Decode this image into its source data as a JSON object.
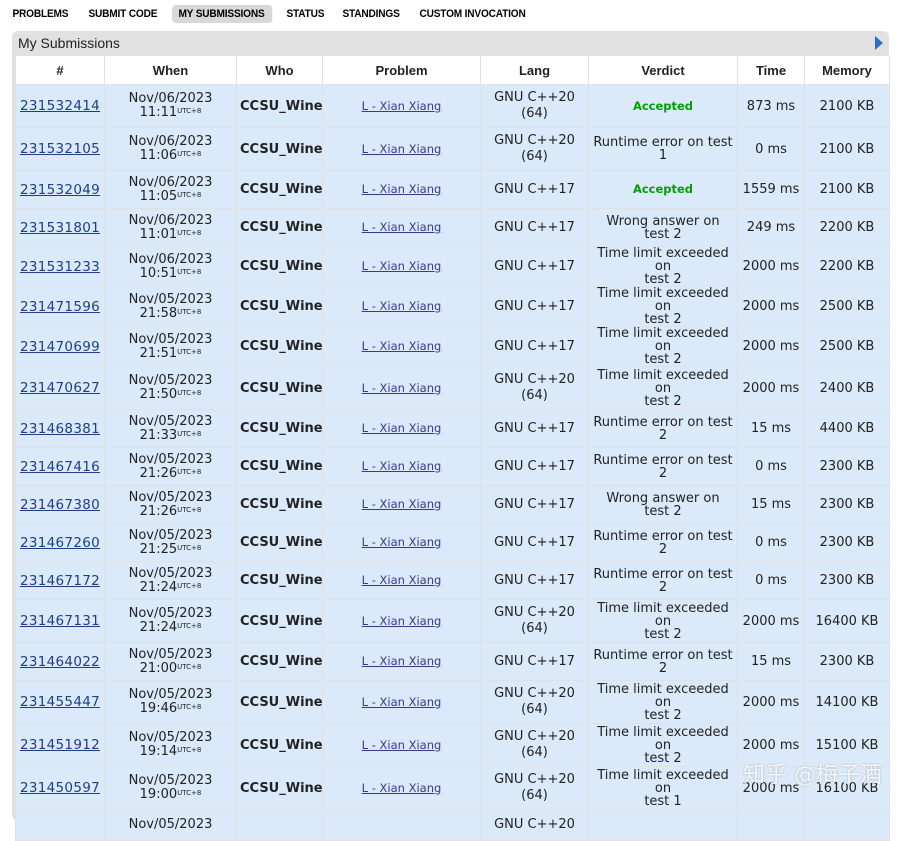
{
  "nav": [
    "PROBLEMS",
    "SUBMIT CODE",
    "MY SUBMISSIONS",
    "STATUS",
    "STANDINGS",
    "CUSTOM INVOCATION"
  ],
  "nav_active": "MY SUBMISSIONS",
  "panel_title": "My Submissions",
  "headers": [
    "#",
    "When",
    "Who",
    "Problem",
    "Lang",
    "Verdict",
    "Time",
    "Memory"
  ],
  "colors": {
    "accepted": "#00a000",
    "row_bg": "#dbeafa",
    "who": "#0000a0"
  },
  "rows": [
    {
      "id": "231532414",
      "date": "Nov/06/2023",
      "time": "11:11",
      "tz": "UTC+8",
      "who": "CCSU_Wine",
      "problem": "L - Xian Xiang",
      "lang": [
        "GNU C++20",
        "(64)"
      ],
      "verdict": [
        "Accepted"
      ],
      "accepted": true,
      "time_ms": "873 ms",
      "memory": "2100 KB"
    },
    {
      "id": "231532105",
      "date": "Nov/06/2023",
      "time": "11:06",
      "tz": "UTC+8",
      "who": "CCSU_Wine",
      "problem": "L - Xian Xiang",
      "lang": [
        "GNU C++20",
        "(64)"
      ],
      "verdict": [
        "Runtime error on test 1"
      ],
      "accepted": false,
      "time_ms": "0 ms",
      "memory": "2100 KB"
    },
    {
      "id": "231532049",
      "date": "Nov/06/2023",
      "time": "11:05",
      "tz": "UTC+8",
      "who": "CCSU_Wine",
      "problem": "L - Xian Xiang",
      "lang": [
        "GNU C++17"
      ],
      "verdict": [
        "Accepted"
      ],
      "accepted": true,
      "time_ms": "1559 ms",
      "memory": "2100 KB"
    },
    {
      "id": "231531801",
      "date": "Nov/06/2023",
      "time": "11:01",
      "tz": "UTC+8",
      "who": "CCSU_Wine",
      "problem": "L - Xian Xiang",
      "lang": [
        "GNU C++17"
      ],
      "verdict": [
        "Wrong answer on test 2"
      ],
      "accepted": false,
      "time_ms": "249 ms",
      "memory": "2200 KB"
    },
    {
      "id": "231531233",
      "date": "Nov/06/2023",
      "time": "10:51",
      "tz": "UTC+8",
      "who": "CCSU_Wine",
      "problem": "L - Xian Xiang",
      "lang": [
        "GNU C++17"
      ],
      "verdict": [
        "Time limit exceeded on",
        "test 2"
      ],
      "accepted": false,
      "time_ms": "2000 ms",
      "memory": "2200 KB"
    },
    {
      "id": "231471596",
      "date": "Nov/05/2023",
      "time": "21:58",
      "tz": "UTC+8",
      "who": "CCSU_Wine",
      "problem": "L - Xian Xiang",
      "lang": [
        "GNU C++17"
      ],
      "verdict": [
        "Time limit exceeded on",
        "test 2"
      ],
      "accepted": false,
      "time_ms": "2000 ms",
      "memory": "2500 KB"
    },
    {
      "id": "231470699",
      "date": "Nov/05/2023",
      "time": "21:51",
      "tz": "UTC+8",
      "who": "CCSU_Wine",
      "problem": "L - Xian Xiang",
      "lang": [
        "GNU C++17"
      ],
      "verdict": [
        "Time limit exceeded on",
        "test 2"
      ],
      "accepted": false,
      "time_ms": "2000 ms",
      "memory": "2500 KB"
    },
    {
      "id": "231470627",
      "date": "Nov/05/2023",
      "time": "21:50",
      "tz": "UTC+8",
      "who": "CCSU_Wine",
      "problem": "L - Xian Xiang",
      "lang": [
        "GNU C++20",
        "(64)"
      ],
      "verdict": [
        "Time limit exceeded on",
        "test 2"
      ],
      "accepted": false,
      "time_ms": "2000 ms",
      "memory": "2400 KB"
    },
    {
      "id": "231468381",
      "date": "Nov/05/2023",
      "time": "21:33",
      "tz": "UTC+8",
      "who": "CCSU_Wine",
      "problem": "L - Xian Xiang",
      "lang": [
        "GNU C++17"
      ],
      "verdict": [
        "Runtime error on test 2"
      ],
      "accepted": false,
      "time_ms": "15 ms",
      "memory": "4400 KB"
    },
    {
      "id": "231467416",
      "date": "Nov/05/2023",
      "time": "21:26",
      "tz": "UTC+8",
      "who": "CCSU_Wine",
      "problem": "L - Xian Xiang",
      "lang": [
        "GNU C++17"
      ],
      "verdict": [
        "Runtime error on test 2"
      ],
      "accepted": false,
      "time_ms": "0 ms",
      "memory": "2300 KB"
    },
    {
      "id": "231467380",
      "date": "Nov/05/2023",
      "time": "21:26",
      "tz": "UTC+8",
      "who": "CCSU_Wine",
      "problem": "L - Xian Xiang",
      "lang": [
        "GNU C++17"
      ],
      "verdict": [
        "Wrong answer on test 2"
      ],
      "accepted": false,
      "time_ms": "15 ms",
      "memory": "2300 KB"
    },
    {
      "id": "231467260",
      "date": "Nov/05/2023",
      "time": "21:25",
      "tz": "UTC+8",
      "who": "CCSU_Wine",
      "problem": "L - Xian Xiang",
      "lang": [
        "GNU C++17"
      ],
      "verdict": [
        "Runtime error on test 2"
      ],
      "accepted": false,
      "time_ms": "0 ms",
      "memory": "2300 KB"
    },
    {
      "id": "231467172",
      "date": "Nov/05/2023",
      "time": "21:24",
      "tz": "UTC+8",
      "who": "CCSU_Wine",
      "problem": "L - Xian Xiang",
      "lang": [
        "GNU C++17"
      ],
      "verdict": [
        "Runtime error on test 2"
      ],
      "accepted": false,
      "time_ms": "0 ms",
      "memory": "2300 KB"
    },
    {
      "id": "231467131",
      "date": "Nov/05/2023",
      "time": "21:24",
      "tz": "UTC+8",
      "who": "CCSU_Wine",
      "problem": "L - Xian Xiang",
      "lang": [
        "GNU C++20",
        "(64)"
      ],
      "verdict": [
        "Time limit exceeded on",
        "test 2"
      ],
      "accepted": false,
      "time_ms": "2000 ms",
      "memory": "16400 KB"
    },
    {
      "id": "231464022",
      "date": "Nov/05/2023",
      "time": "21:00",
      "tz": "UTC+8",
      "who": "CCSU_Wine",
      "problem": "L - Xian Xiang",
      "lang": [
        "GNU C++17"
      ],
      "verdict": [
        "Runtime error on test 2"
      ],
      "accepted": false,
      "time_ms": "15 ms",
      "memory": "2300 KB"
    },
    {
      "id": "231455447",
      "date": "Nov/05/2023",
      "time": "19:46",
      "tz": "UTC+8",
      "who": "CCSU_Wine",
      "problem": "L - Xian Xiang",
      "lang": [
        "GNU C++20",
        "(64)"
      ],
      "verdict": [
        "Time limit exceeded on",
        "test 2"
      ],
      "accepted": false,
      "time_ms": "2000 ms",
      "memory": "14100 KB"
    },
    {
      "id": "231451912",
      "date": "Nov/05/2023",
      "time": "19:14",
      "tz": "UTC+8",
      "who": "CCSU_Wine",
      "problem": "L - Xian Xiang",
      "lang": [
        "GNU C++20",
        "(64)"
      ],
      "verdict": [
        "Time limit exceeded on",
        "test 2"
      ],
      "accepted": false,
      "time_ms": "2000 ms",
      "memory": "15100 KB"
    },
    {
      "id": "231450597",
      "date": "Nov/05/2023",
      "time": "19:00",
      "tz": "UTC+8",
      "who": "CCSU_Wine",
      "problem": "L - Xian Xiang",
      "lang": [
        "GNU C++20",
        "(64)"
      ],
      "verdict": [
        "Time limit exceeded on",
        "test 1"
      ],
      "accepted": false,
      "time_ms": "2000 ms",
      "memory": "16100 KB"
    },
    {
      "id": "",
      "date": "Nov/05/2023",
      "time": "",
      "tz": "",
      "who": "",
      "problem": "",
      "lang": [
        "GNU C++20"
      ],
      "verdict": [
        ""
      ],
      "accepted": false,
      "time_ms": "",
      "memory": ""
    }
  ],
  "watermark": "知乎 @梅子酒"
}
